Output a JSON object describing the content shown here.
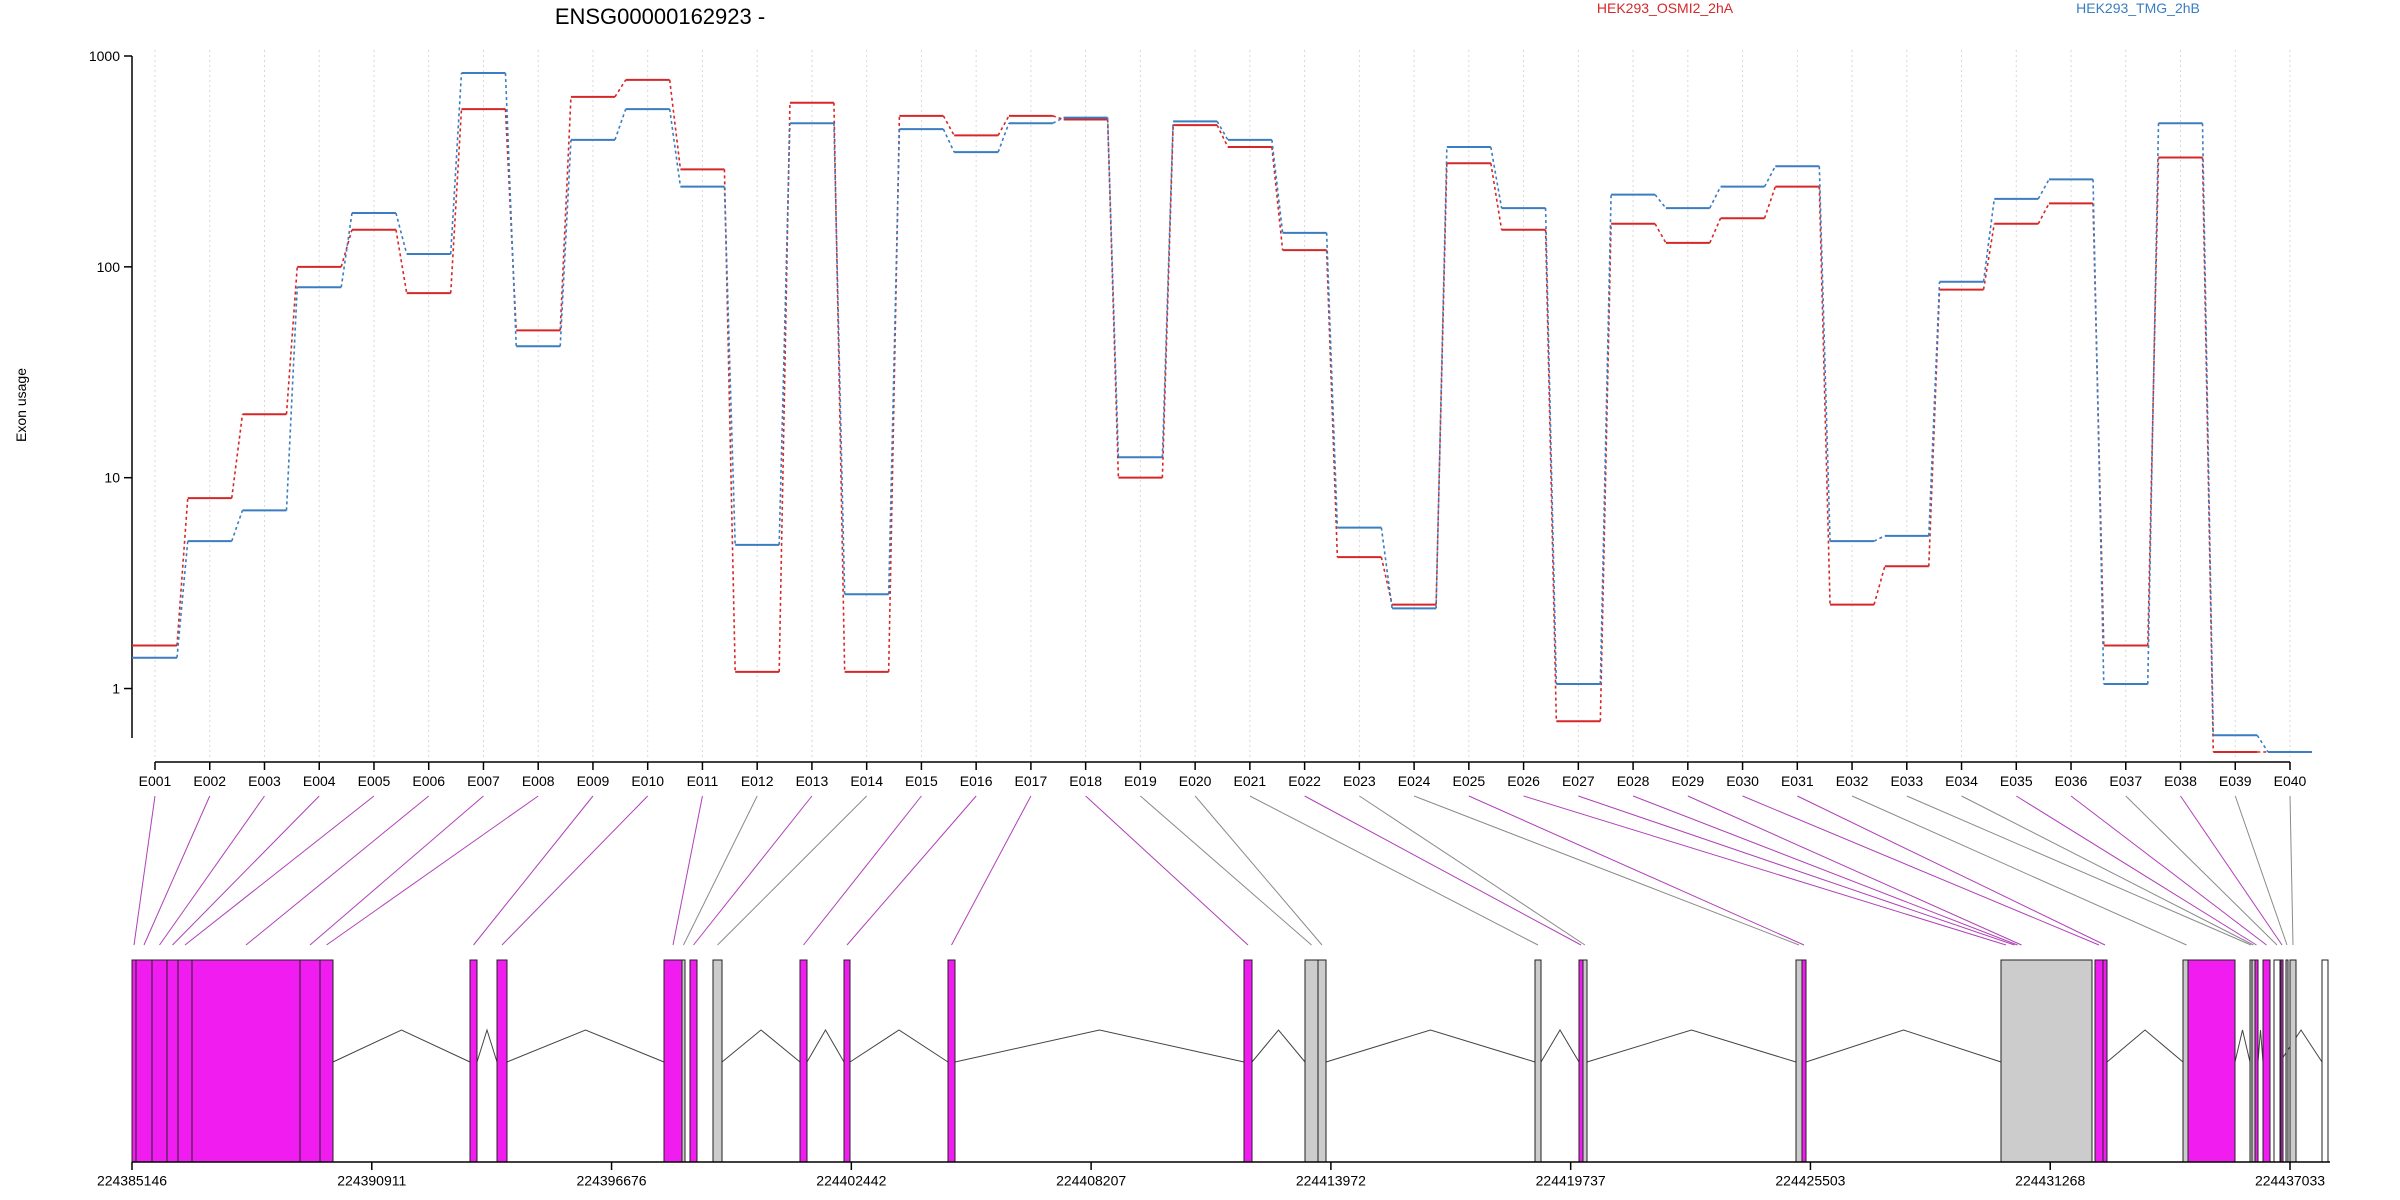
{
  "chart_data": {
    "type": "line",
    "title": "ENSG00000162923 -",
    "ylabel": "Exon usage",
    "xlabel": "",
    "y_scale": "log",
    "ylim": [
      0.5,
      1000
    ],
    "y_ticks": [
      1,
      10,
      100,
      1000
    ],
    "y_tick_labels": [
      "1",
      "10",
      "100",
      "1000"
    ],
    "grid": "vertical dotted lines at each exon",
    "legend_position": "top",
    "colors": {
      "HEK293_OSMI2_2hA": "#d62728",
      "HEK293_TMG_2hB": "#3a7dc0",
      "exon_alt": "#f01cf0",
      "exon_const": "#cccccc"
    },
    "categories": [
      "E001",
      "E002",
      "E003",
      "E004",
      "E005",
      "E006",
      "E007",
      "E008",
      "E009",
      "E010",
      "E011",
      "E012",
      "E013",
      "E014",
      "E015",
      "E016",
      "E017",
      "E018",
      "E019",
      "E020",
      "E021",
      "E022",
      "E023",
      "E024",
      "E025",
      "E026",
      "E027",
      "E028",
      "E029",
      "E030",
      "E031",
      "E032",
      "E033",
      "E034",
      "E035",
      "E036",
      "E037",
      "E038",
      "E039",
      "E040"
    ],
    "series": [
      {
        "name": "HEK293_OSMI2_2hA",
        "color": "#d62728",
        "values": [
          1.6,
          8,
          20,
          100,
          150,
          75,
          560,
          50,
          640,
          770,
          290,
          1.2,
          600,
          1.2,
          520,
          420,
          520,
          500,
          10,
          470,
          370,
          120,
          4.2,
          2.5,
          310,
          150,
          0.7,
          160,
          130,
          170,
          240,
          2.5,
          3.8,
          78,
          160,
          200,
          1.6,
          330,
          0.5,
          0.5
        ]
      },
      {
        "name": "HEK293_TMG_2hB",
        "color": "#3a7dc0",
        "values": [
          1.4,
          5,
          7,
          80,
          180,
          115,
          830,
          42,
          400,
          560,
          240,
          4.8,
          480,
          2.8,
          450,
          350,
          480,
          510,
          12.5,
          490,
          400,
          145,
          5.8,
          2.4,
          370,
          190,
          1.05,
          220,
          190,
          240,
          300,
          5,
          5.3,
          85,
          210,
          260,
          1.05,
          480,
          0.6,
          0.5
        ]
      }
    ],
    "genomic_axis_labels": [
      "224385146",
      "224390911",
      "224396676",
      "224402442",
      "224408207",
      "224413972",
      "224419737",
      "224425503",
      "224431268",
      "224437033"
    ]
  },
  "gene_model": {
    "exon_colors": [
      "#f01cf0",
      "#f01cf0",
      "#f01cf0",
      "#f01cf0",
      "#f01cf0",
      "#f01cf0",
      "#f01cf0",
      "#f01cf0",
      "#f01cf0",
      "#f01cf0",
      "#f01cf0",
      "#cccccc",
      "#f01cf0",
      "#cccccc",
      "#f01cf0",
      "#f01cf0",
      "#f01cf0",
      "#f01cf0",
      "#cccccc",
      "#cccccc",
      "#cccccc",
      "#f01cf0",
      "#cccccc",
      "#cccccc",
      "#f01cf0",
      "#f01cf0",
      "#f01cf0",
      "#f01cf0",
      "#f01cf0",
      "#f01cf0",
      "#f01cf0",
      "#cccccc",
      "#cccccc",
      "#cccccc",
      "#f01cf0",
      "#f01cf0",
      "#cccccc",
      "#f01cf0",
      "#cccccc",
      "#cccccc"
    ]
  }
}
